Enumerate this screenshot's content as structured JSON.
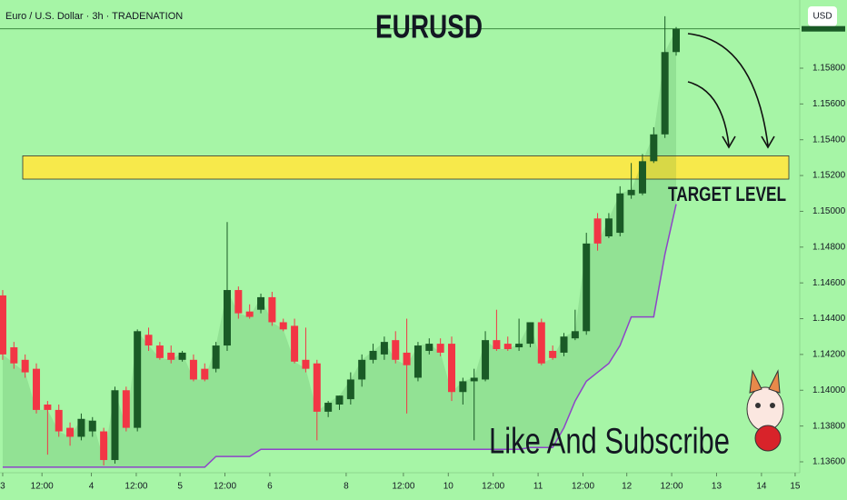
{
  "chart_data": {
    "type": "candlestick",
    "header": "Euro / U.S. Dollar · 3h · TRADENATION",
    "title": "EURUSD",
    "currency": "USD",
    "annotations": [
      "TARGET LEVEL",
      "Like And Subscribe"
    ],
    "target_zone": [
      1.1518,
      1.1531
    ],
    "up_color": "#1a5a26",
    "down_color": "#f23645",
    "line_color": "#8e44c8",
    "zone_color": "#f7e94b",
    "categories": [
      null,
      null,
      null,
      null,
      null,
      null,
      null,
      null,
      null,
      null,
      null,
      null,
      null,
      null,
      null,
      null,
      null,
      null,
      null,
      null,
      null,
      null,
      null,
      null,
      null,
      null,
      null,
      null,
      null,
      null,
      null,
      null,
      null,
      null,
      null,
      null,
      null,
      null,
      null,
      null,
      null,
      null,
      null,
      null,
      null,
      null,
      null,
      null,
      null,
      null,
      null,
      null,
      null,
      null,
      null,
      null,
      null,
      null,
      null,
      null,
      null
    ],
    "open": [
      1.1453,
      1.1424,
      1.1417,
      1.1412,
      1.1392,
      1.1389,
      1.1379,
      1.1374,
      1.1377,
      1.1377,
      1.1361,
      1.14,
      1.1379,
      1.1431,
      1.1425,
      1.1421,
      1.1417,
      1.1417,
      1.1412,
      1.1412,
      1.1425,
      1.1456,
      1.1444,
      1.1445,
      1.1452,
      1.1438,
      1.1436,
      1.1417,
      1.1415,
      1.1388,
      1.1392,
      1.1395,
      1.1406,
      1.1417,
      1.142,
      1.1428,
      1.1421,
      1.1407,
      1.1422,
      1.1426,
      1.1426,
      1.1399,
      1.1405,
      1.1406,
      1.1428,
      1.1426,
      1.1424,
      1.1426,
      1.1438,
      1.1422,
      1.1421,
      1.1429,
      1.1433,
      1.1496,
      1.1486,
      1.1488,
      1.1509,
      1.151,
      1.1528,
      1.1543,
      1.1589
    ],
    "high": [
      1.1456,
      1.1427,
      1.142,
      1.1415,
      1.1394,
      1.1392,
      1.1382,
      1.1387,
      1.1385,
      1.1379,
      1.1402,
      1.1402,
      1.1434,
      1.1435,
      1.1427,
      1.1425,
      1.1422,
      1.142,
      1.1415,
      1.1427,
      1.1494,
      1.1458,
      1.1448,
      1.1454,
      1.1455,
      1.144,
      1.144,
      1.1435,
      1.1417,
      1.1394,
      1.1397,
      1.141,
      1.142,
      1.1426,
      1.143,
      1.1433,
      1.144,
      1.1427,
      1.1429,
      1.1429,
      1.143,
      1.1407,
      1.1412,
      1.1433,
      1.1445,
      1.143,
      1.144,
      1.1438,
      1.144,
      1.1425,
      1.1432,
      1.1445,
      1.1488,
      1.1499,
      1.1499,
      1.1514,
      1.1527,
      1.1532,
      1.1547,
      1.1609,
      1.1603
    ],
    "low": [
      1.1417,
      1.1412,
      1.1407,
      1.1387,
      1.1364,
      1.1374,
      1.1369,
      1.1372,
      1.1374,
      1.1358,
      1.1359,
      1.1377,
      1.1377,
      1.1422,
      1.1417,
      1.1415,
      1.1416,
      1.1405,
      1.1405,
      1.141,
      1.1422,
      1.144,
      1.144,
      1.1443,
      1.1436,
      1.1433,
      1.1415,
      1.141,
      1.1372,
      1.1385,
      1.1389,
      1.1392,
      1.1402,
      1.1415,
      1.1417,
      1.1415,
      1.1387,
      1.1405,
      1.142,
      1.1419,
      1.1394,
      1.1392,
      1.1372,
      1.1405,
      1.1422,
      1.1422,
      1.1422,
      1.1424,
      1.1414,
      1.1417,
      1.1419,
      1.1428,
      1.1431,
      1.1478,
      1.1485,
      1.1486,
      1.1507,
      1.1509,
      1.1527,
      1.1541,
      1.1587
    ],
    "close": [
      1.142,
      1.1415,
      1.141,
      1.1389,
      1.1389,
      1.1377,
      1.1374,
      1.1384,
      1.1383,
      1.1361,
      1.14,
      1.1379,
      1.1433,
      1.1425,
      1.1418,
      1.1417,
      1.1421,
      1.1406,
      1.1406,
      1.1425,
      1.1456,
      1.1443,
      1.1441,
      1.1452,
      1.1438,
      1.1434,
      1.1416,
      1.1412,
      1.1388,
      1.1393,
      1.1397,
      1.1406,
      1.1417,
      1.1422,
      1.1427,
      1.1417,
      1.1414,
      1.1425,
      1.1426,
      1.1421,
      1.1399,
      1.1405,
      1.1407,
      1.1428,
      1.1423,
      1.1423,
      1.1426,
      1.1438,
      1.1415,
      1.1418,
      1.143,
      1.1433,
      1.1482,
      1.1482,
      1.1496,
      1.151,
      1.1512,
      1.1528,
      1.1543,
      1.1589,
      1.1602
    ],
    "trail": [
      1.1357,
      1.1357,
      1.1357,
      1.1357,
      1.1357,
      1.1357,
      1.1357,
      1.1357,
      1.1357,
      1.1357,
      1.1357,
      1.1357,
      1.1357,
      1.1357,
      1.1357,
      1.1357,
      1.1357,
      1.1357,
      1.1357,
      1.1363,
      1.1363,
      1.1363,
      1.1363,
      1.1367,
      1.1367,
      1.1367,
      1.1367,
      1.1367,
      1.1367,
      1.1367,
      1.1367,
      1.1367,
      1.1367,
      1.1367,
      1.1367,
      1.1367,
      1.1367,
      1.1367,
      1.1367,
      1.1367,
      1.1367,
      1.1367,
      1.1367,
      1.1367,
      1.1367,
      1.1367,
      1.1367,
      1.1368,
      1.1368,
      1.1368,
      1.1379,
      1.1394,
      1.1405,
      1.141,
      1.1415,
      1.1425,
      1.1441,
      1.1441,
      1.1441,
      1.1476,
      1.1504
    ],
    "xlim": [
      -0.24,
      71.01
    ],
    "ylim": [
      1.13539,
      1.16181
    ],
    "xticks": [
      {
        "value": 0,
        "label": "3"
      },
      {
        "value": 3.5,
        "label": "12:00"
      },
      {
        "value": 7.9,
        "label": "4"
      },
      {
        "value": 11.9,
        "label": "12:00"
      },
      {
        "value": 15.8,
        "label": "5"
      },
      {
        "value": 19.8,
        "label": "12:00"
      },
      {
        "value": 23.8,
        "label": "6"
      },
      {
        "value": 30.6,
        "label": "8"
      },
      {
        "value": 35.7,
        "label": "12:00"
      },
      {
        "value": 39.7,
        "label": "10"
      },
      {
        "value": 43.7,
        "label": "12:00"
      },
      {
        "value": 47.7,
        "label": "11"
      },
      {
        "value": 51.7,
        "label": "12:00"
      },
      {
        "value": 55.6,
        "label": "12"
      },
      {
        "value": 59.6,
        "label": "12:00"
      },
      {
        "value": 63.6,
        "label": "13"
      },
      {
        "value": 67.6,
        "label": "14"
      },
      {
        "value": 70.6,
        "label": "15"
      }
    ],
    "yticks": [
      {
        "value": 1.136,
        "label": "1.13600"
      },
      {
        "value": 1.138,
        "label": "1.13800"
      },
      {
        "value": 1.14,
        "label": "1.14000"
      },
      {
        "value": 1.142,
        "label": "1.14200"
      },
      {
        "value": 1.144,
        "label": "1.14400"
      },
      {
        "value": 1.146,
        "label": "1.14600"
      },
      {
        "value": 1.148,
        "label": "1.14800"
      },
      {
        "value": 1.15,
        "label": "1.15000"
      },
      {
        "value": 1.152,
        "label": "1.15200"
      },
      {
        "value": 1.154,
        "label": "1.15400"
      },
      {
        "value": 1.156,
        "label": "1.15600"
      },
      {
        "value": 1.158,
        "label": "1.15800"
      }
    ]
  }
}
